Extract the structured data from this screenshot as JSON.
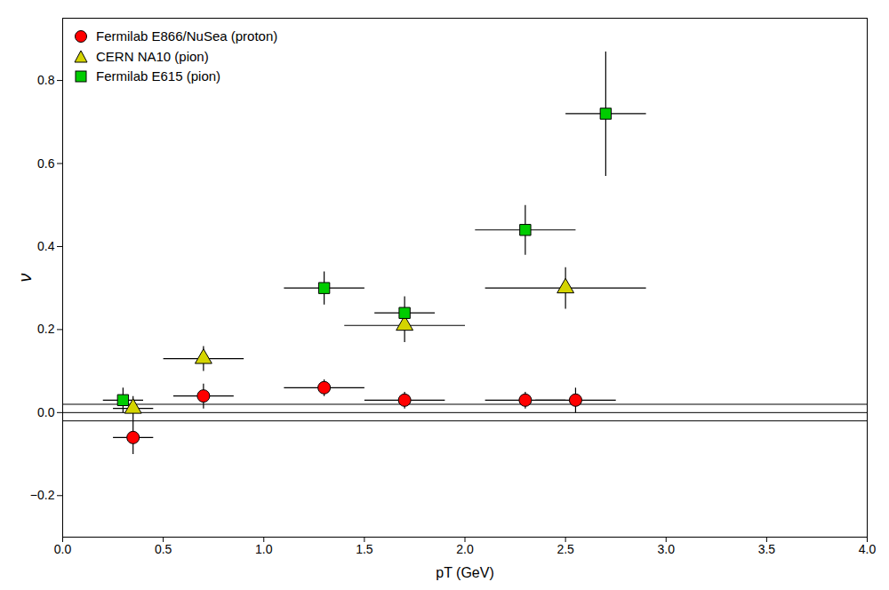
{
  "chart_data": {
    "type": "scatter",
    "title": "",
    "xlabel": "pT (GeV)",
    "ylabel": "ν",
    "xlim": [
      0,
      4
    ],
    "ylim": [
      -0.3,
      0.95
    ],
    "xticks": [
      {
        "value": 0,
        "label": "0.0"
      },
      0.5,
      {
        "value": 1.0,
        "label": "1.0"
      },
      1.5,
      {
        "value": 2.0,
        "label": "2.0"
      },
      2.5,
      {
        "value": 3.0,
        "label": "3.0"
      },
      3.5,
      {
        "value": 4.0,
        "label": "4.0"
      }
    ],
    "yticks": [
      -0.2,
      {
        "value": 0.0,
        "label": "0.0"
      },
      0.2,
      0.4,
      0.6,
      0.8
    ],
    "grid": false,
    "legend": "upper left",
    "series": [
      {
        "name": "Fermilab E866/NuSea (proton)",
        "color": "#ff0000",
        "marker": "circle",
        "x": [
          0.35,
          0.7,
          1.3,
          1.7,
          2.3,
          2.55
        ],
        "values": [
          -0.06,
          0.04,
          0.06,
          0.03,
          0.03,
          0.03
        ],
        "xerr": [
          0.1,
          0.15,
          0.2,
          0.2,
          0.2,
          0.2
        ],
        "yerr": [
          0.04,
          0.03,
          0.02,
          0.02,
          0.02,
          0.03
        ]
      },
      {
        "name": "CERN NA10 (pion)",
        "color": "#d4d400",
        "marker": "triangle",
        "x": [
          0.35,
          0.7,
          1.7,
          2.5
        ],
        "values": [
          0.01,
          0.13,
          0.21,
          0.3
        ],
        "xerr": [
          0.1,
          0.2,
          0.3,
          0.4
        ],
        "yerr": [
          0.03,
          0.03,
          0.04,
          0.05
        ]
      },
      {
        "name": "Fermilab E615 (pion)",
        "color": "#00cc00",
        "marker": "square",
        "x": [
          0.3,
          1.3,
          1.7,
          2.3,
          2.7
        ],
        "values": [
          0.03,
          0.3,
          0.24,
          0.44,
          0.72
        ],
        "xerr": [
          0.1,
          0.2,
          0.15,
          0.25,
          0.2
        ],
        "yerr": [
          0.03,
          0.04,
          0.04,
          0.06,
          0.15
        ]
      }
    ],
    "hlines": [
      -0.02,
      0.0,
      0.02
    ]
  }
}
